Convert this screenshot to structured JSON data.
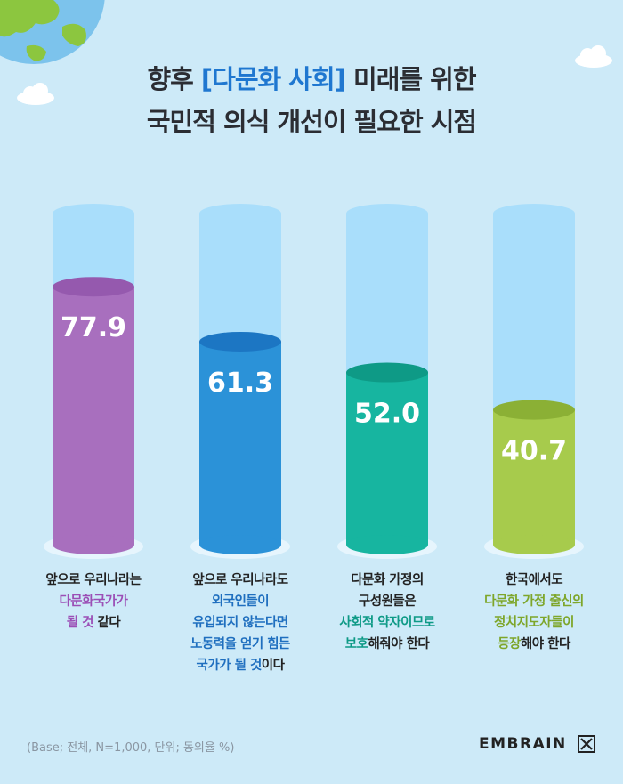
{
  "title": {
    "line1_pre": "향후 ",
    "line1_highlight": "[다문화 사회]",
    "line1_post": " 미래를 위한",
    "line2": "국민적 의식 개선이 필요한 시점"
  },
  "chart_data": {
    "type": "bar",
    "title": "향후 [다문화 사회] 미래를 위한 국민적 의식 개선이 필요한 시점",
    "ylim": [
      0,
      100
    ],
    "categories": [
      "앞으로 우리나라는 다문화국가가 될 것 같다",
      "앞으로 우리나라도 외국인들이 유입되지 않는다면 노동력을 얻기 힘든 국가가 될 것이다",
      "다문화 가정의 구성원들은 사회적 약자이므로 보호해줘야 한다",
      "한국에서도 다문화 가정 출신의 정치지도자들이 등장해야 한다"
    ],
    "values": [
      77.9,
      61.3,
      52.0,
      40.7
    ],
    "value_labels": [
      "77.9",
      "61.3",
      "52.0",
      "40.7"
    ],
    "colors": [
      "#a86fbe",
      "#2b92d8",
      "#17b5a0",
      "#a7cb4c"
    ],
    "top_colors": [
      "#9559ae",
      "#1c76c3",
      "#0e9a86",
      "#8bb035"
    ],
    "grid": false,
    "legend": "none"
  },
  "captions": [
    {
      "lines": [
        [
          {
            "t": "앞으로 우리나라는",
            "c": ""
          }
        ],
        [
          {
            "t": "다문화국가가",
            "c": "#9b4fb6"
          }
        ],
        [
          {
            "t": "될 것",
            "c": "#9b4fb6"
          },
          {
            "t": " 같다",
            "c": ""
          }
        ]
      ]
    },
    {
      "lines": [
        [
          {
            "t": "앞으로 우리나라도",
            "c": ""
          }
        ],
        [
          {
            "t": "외국인들이",
            "c": "#1f6fbf"
          }
        ],
        [
          {
            "t": "유입되지 않는다면",
            "c": "#1f6fbf"
          }
        ],
        [
          {
            "t": "노동력을 얻기 힘든",
            "c": "#1f6fbf"
          }
        ],
        [
          {
            "t": "국가가 될 것",
            "c": "#1f6fbf"
          },
          {
            "t": "이다",
            "c": ""
          }
        ]
      ]
    },
    {
      "lines": [
        [
          {
            "t": "다문화 가정의",
            "c": ""
          }
        ],
        [
          {
            "t": "구성원들은",
            "c": ""
          }
        ],
        [
          {
            "t": "사회적 약자이므로",
            "c": "#0e9a86"
          }
        ],
        [
          {
            "t": "보호",
            "c": "#0e9a86"
          },
          {
            "t": "해줘야 한다",
            "c": ""
          }
        ]
      ]
    },
    {
      "lines": [
        [
          {
            "t": "한국에서도",
            "c": ""
          }
        ],
        [
          {
            "t": "다문화 가정 출신의",
            "c": "#7ea62a"
          }
        ],
        [
          {
            "t": "정치지도자들이",
            "c": "#7ea62a"
          }
        ],
        [
          {
            "t": "등장",
            "c": "#7ea62a"
          },
          {
            "t": "해야 한다",
            "c": ""
          }
        ]
      ]
    }
  ],
  "footer": {
    "base_note": "(Base; 전체, N=1,000, 단위; 동의율 %)",
    "brand": "EMBRAIN"
  }
}
